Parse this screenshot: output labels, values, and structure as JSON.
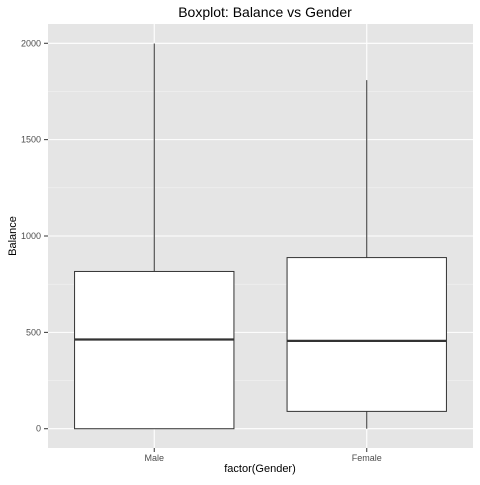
{
  "chart_data": {
    "type": "boxplot",
    "title": "Boxplot: Balance vs Gender",
    "xlabel": "factor(Gender)",
    "ylabel": "Balance",
    "categories": [
      "Male",
      "Female"
    ],
    "boxes": [
      {
        "category": "Male",
        "min": 0,
        "q1": 0,
        "median": 463,
        "q3": 816,
        "max": 1999
      },
      {
        "category": "Female",
        "min": 0,
        "q1": 90,
        "median": 456,
        "q3": 888,
        "max": 1809
      }
    ],
    "y_ticks": [
      0,
      500,
      1000,
      1500,
      2000
    ],
    "ylim": [
      -100,
      2100
    ],
    "grid": true,
    "colors": {
      "panel_background": "#e5e5e5",
      "grid_major": "#ffffff",
      "grid_minor": "#f2f2f2",
      "box_fill": "#ffffff",
      "box_stroke": "#333333"
    }
  }
}
